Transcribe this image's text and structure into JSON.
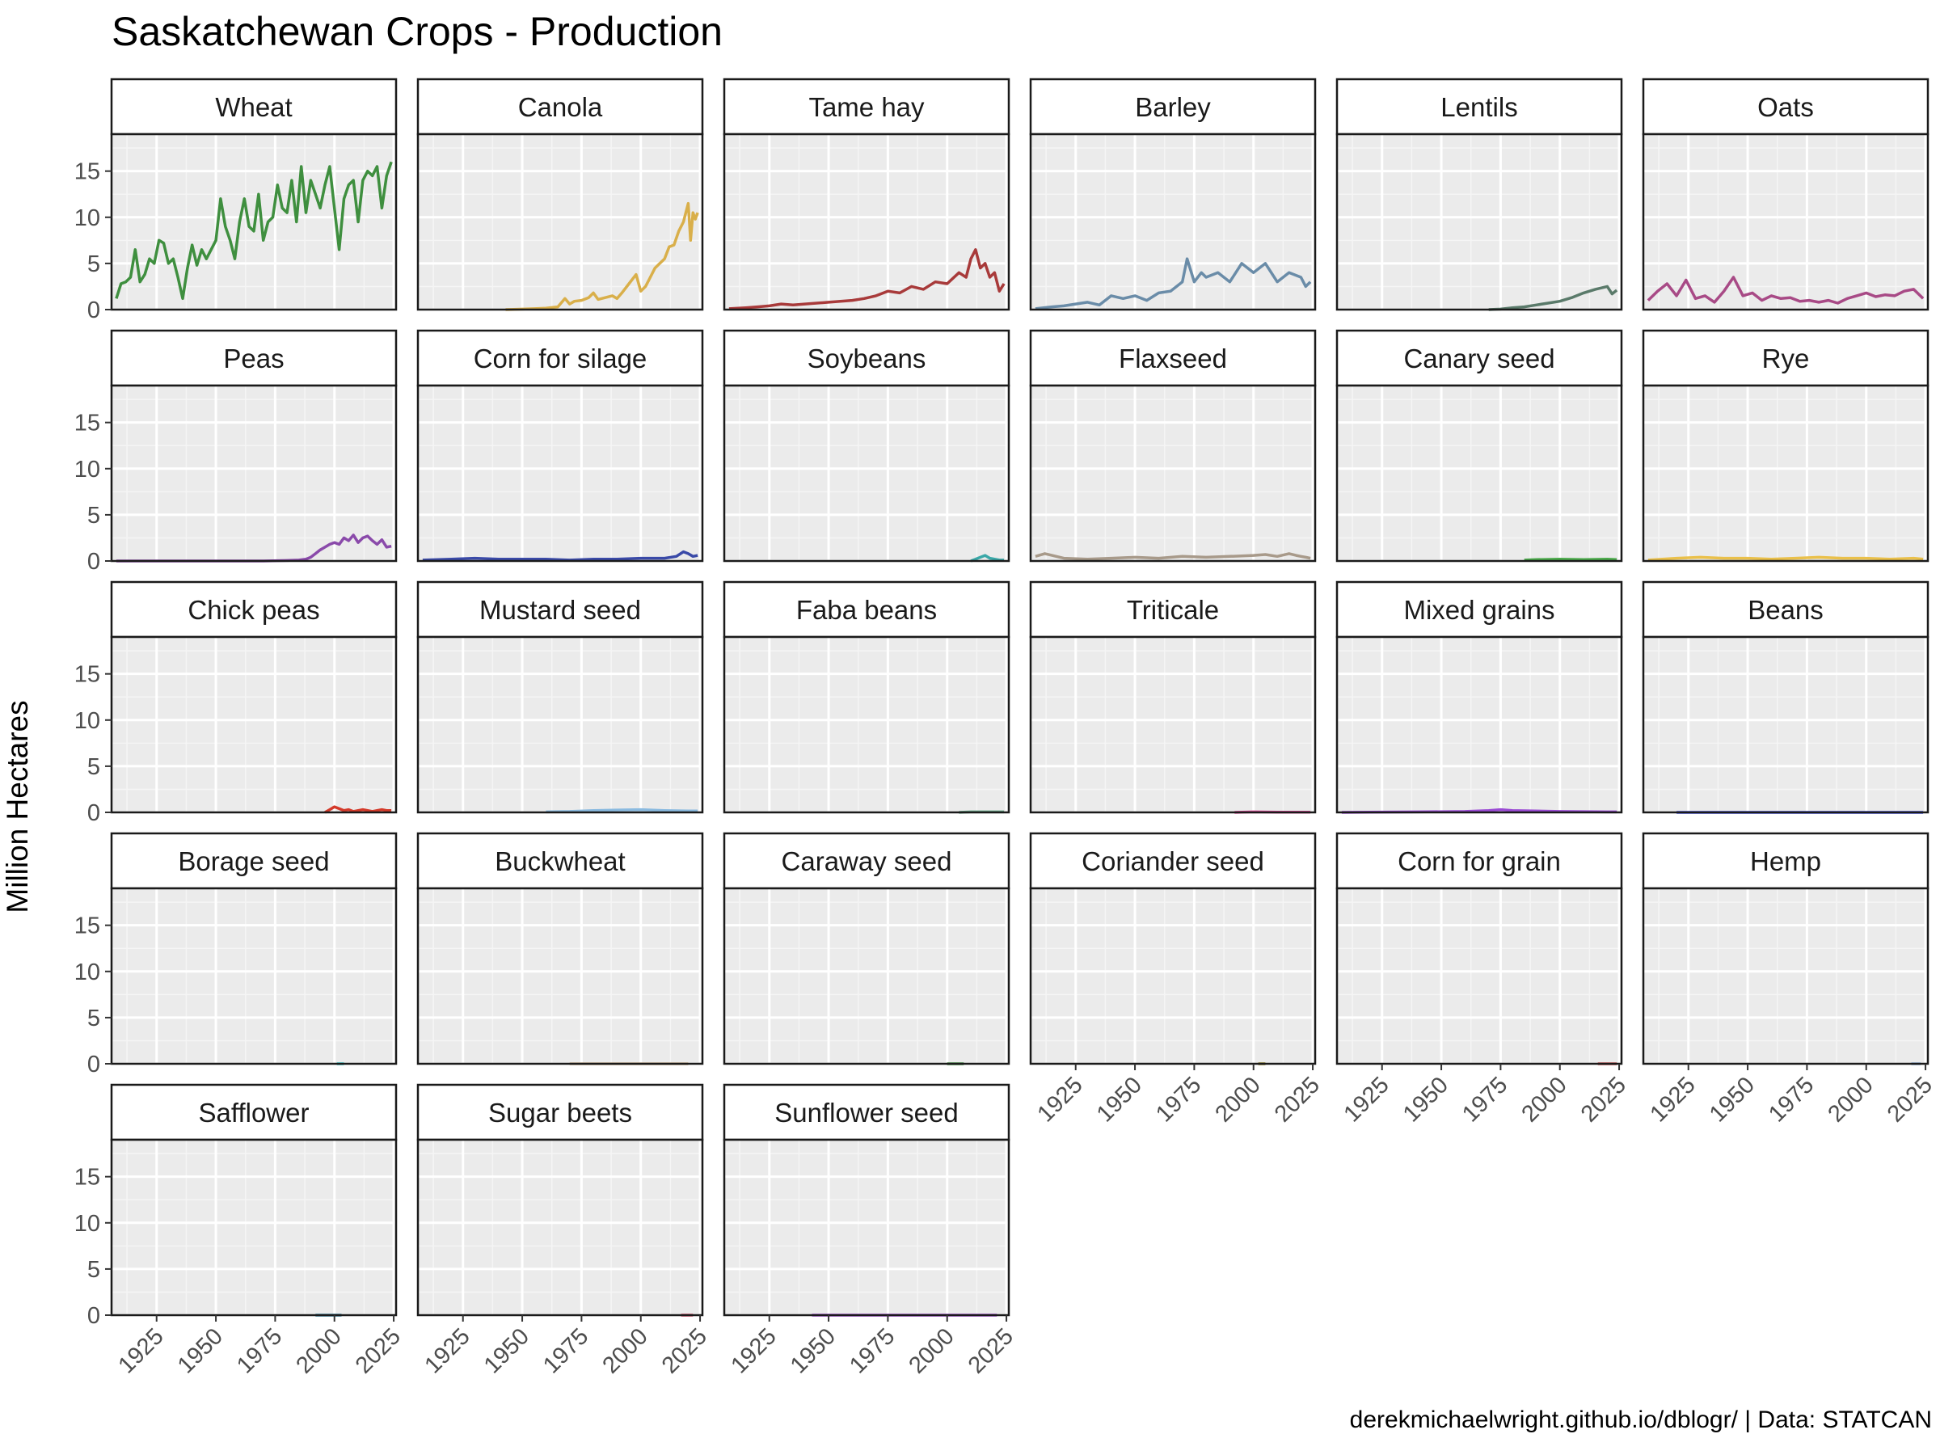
{
  "title": "Saskatchewan Crops - Production",
  "ylabel": "Million Hectares",
  "caption": "derekmichaelwright.github.io/dblogr/ | Data: STATCAN",
  "chart_data": {
    "type": "line",
    "facet": "small-multiples",
    "ylim": [
      0,
      19
    ],
    "yticks": [
      0,
      5,
      10,
      15
    ],
    "xlim": [
      1906,
      2026
    ],
    "xticks": [
      1925,
      1950,
      1975,
      2000,
      2025
    ],
    "grid": true,
    "panels": [
      {
        "name": "Wheat",
        "color": "#3F8F3F",
        "x": [
          1908,
          1910,
          1912,
          1914,
          1916,
          1918,
          1920,
          1922,
          1924,
          1926,
          1928,
          1930,
          1932,
          1934,
          1936,
          1938,
          1940,
          1942,
          1944,
          1946,
          1948,
          1950,
          1952,
          1954,
          1956,
          1958,
          1960,
          1962,
          1964,
          1966,
          1968,
          1970,
          1972,
          1974,
          1976,
          1978,
          1980,
          1982,
          1984,
          1986,
          1988,
          1990,
          1992,
          1994,
          1996,
          1998,
          2000,
          2002,
          2004,
          2006,
          2008,
          2010,
          2012,
          2014,
          2016,
          2018,
          2020,
          2022,
          2024
        ],
        "y": [
          1.2,
          2.8,
          3,
          3.5,
          6.5,
          3,
          3.8,
          5.5,
          5,
          7.5,
          7.2,
          5,
          5.5,
          3.5,
          1.2,
          4.5,
          7,
          4.8,
          6.5,
          5.5,
          6.5,
          7.5,
          12,
          9,
          7.5,
          5.5,
          9.5,
          12,
          9,
          8.5,
          12.5,
          7.5,
          9.5,
          10,
          13.5,
          11,
          10.5,
          14,
          9.5,
          15.5,
          10.5,
          14,
          12.5,
          11,
          13.5,
          15.5,
          11,
          6.5,
          12,
          13.5,
          14,
          9.5,
          14,
          15,
          14.5,
          15.5,
          11,
          14.5,
          16
        ]
      },
      {
        "name": "Canola",
        "color": "#D9AF4A",
        "x": [
          1943,
          1950,
          1955,
          1960,
          1965,
          1968,
          1970,
          1972,
          1975,
          1978,
          1980,
          1982,
          1985,
          1988,
          1990,
          1992,
          1995,
          1998,
          2000,
          2002,
          2004,
          2006,
          2008,
          2010,
          2012,
          2014,
          2016,
          2018,
          2020,
          2021,
          2022,
          2023,
          2024
        ],
        "y": [
          0,
          0.05,
          0.1,
          0.15,
          0.3,
          1.2,
          0.6,
          0.9,
          1,
          1.3,
          1.8,
          1.1,
          1.3,
          1.5,
          1.2,
          1.8,
          2.8,
          3.8,
          2,
          2.5,
          3.5,
          4.5,
          5,
          5.5,
          6.8,
          7,
          8.5,
          9.5,
          11.5,
          7.5,
          10.5,
          9.8,
          10.5
        ]
      },
      {
        "name": "Tame hay",
        "color": "#A83A3A",
        "x": [
          1908,
          1915,
          1920,
          1925,
          1930,
          1935,
          1940,
          1945,
          1950,
          1955,
          1960,
          1965,
          1970,
          1975,
          1980,
          1985,
          1990,
          1995,
          2000,
          2005,
          2008,
          2010,
          2012,
          2014,
          2016,
          2018,
          2020,
          2022,
          2024
        ],
        "y": [
          0.1,
          0.2,
          0.3,
          0.4,
          0.6,
          0.5,
          0.6,
          0.7,
          0.8,
          0.9,
          1,
          1.2,
          1.5,
          2,
          1.8,
          2.5,
          2.2,
          3,
          2.8,
          4,
          3.5,
          5.5,
          6.5,
          4.5,
          5,
          3.5,
          4,
          2,
          2.8
        ]
      },
      {
        "name": "Barley",
        "color": "#6A8CA8",
        "x": [
          1908,
          1915,
          1920,
          1925,
          1930,
          1935,
          1940,
          1945,
          1950,
          1955,
          1960,
          1965,
          1970,
          1972,
          1975,
          1978,
          1980,
          1985,
          1990,
          1995,
          2000,
          2005,
          2010,
          2015,
          2020,
          2022,
          2024
        ],
        "y": [
          0.1,
          0.3,
          0.4,
          0.6,
          0.8,
          0.5,
          1.5,
          1.2,
          1.5,
          1,
          1.8,
          2,
          3,
          5.5,
          3,
          4,
          3.5,
          4,
          3,
          5,
          4,
          5,
          3,
          4,
          3.5,
          2.5,
          3
        ]
      },
      {
        "name": "Lentils",
        "color": "#5A7A6A",
        "x": [
          1970,
          1975,
          1980,
          1985,
          1990,
          1995,
          2000,
          2005,
          2010,
          2015,
          2020,
          2022,
          2024
        ],
        "y": [
          0,
          0.05,
          0.2,
          0.3,
          0.5,
          0.7,
          0.9,
          1.3,
          1.8,
          2.2,
          2.5,
          1.7,
          2.1
        ]
      },
      {
        "name": "Oats",
        "color": "#A84A86",
        "x": [
          1908,
          1912,
          1916,
          1920,
          1924,
          1928,
          1932,
          1936,
          1940,
          1944,
          1948,
          1952,
          1956,
          1960,
          1964,
          1968,
          1972,
          1976,
          1980,
          1984,
          1988,
          1992,
          1996,
          2000,
          2004,
          2008,
          2012,
          2016,
          2020,
          2024
        ],
        "y": [
          1,
          2,
          2.8,
          1.5,
          3.2,
          1.2,
          1.5,
          0.8,
          2,
          3.5,
          1.5,
          1.8,
          1,
          1.5,
          1.2,
          1.3,
          0.9,
          1,
          0.8,
          1,
          0.7,
          1.2,
          1.5,
          1.8,
          1.4,
          1.6,
          1.5,
          2,
          2.2,
          1.2
        ]
      },
      {
        "name": "Peas",
        "color": "#8A4AAA",
        "x": [
          1908,
          1930,
          1950,
          1970,
          1980,
          1985,
          1988,
          1990,
          1992,
          1994,
          1996,
          1998,
          2000,
          2002,
          2004,
          2006,
          2008,
          2010,
          2012,
          2014,
          2016,
          2018,
          2020,
          2022,
          2024
        ],
        "y": [
          0,
          0,
          0,
          0,
          0.05,
          0.1,
          0.2,
          0.4,
          0.8,
          1.2,
          1.5,
          1.8,
          2,
          1.8,
          2.5,
          2.2,
          2.8,
          2,
          2.5,
          2.7,
          2.2,
          1.8,
          2.3,
          1.5,
          1.6
        ]
      },
      {
        "name": "Corn for silage",
        "color": "#3A4AA8",
        "x": [
          1908,
          1920,
          1930,
          1940,
          1950,
          1960,
          1970,
          1980,
          1990,
          2000,
          2010,
          2015,
          2018,
          2020,
          2022,
          2024
        ],
        "y": [
          0.1,
          0.2,
          0.3,
          0.2,
          0.2,
          0.2,
          0.1,
          0.2,
          0.2,
          0.3,
          0.3,
          0.5,
          1,
          0.8,
          0.5,
          0.6
        ]
      },
      {
        "name": "Soybeans",
        "color": "#3AA8A8",
        "x": [
          2010,
          2012,
          2014,
          2016,
          2018,
          2020,
          2022,
          2024
        ],
        "y": [
          0,
          0.2,
          0.4,
          0.6,
          0.3,
          0.2,
          0.1,
          0.1
        ]
      },
      {
        "name": "Flaxseed",
        "color": "#A89A8A",
        "x": [
          1908,
          1912,
          1920,
          1930,
          1940,
          1950,
          1960,
          1970,
          1980,
          1990,
          2000,
          2005,
          2010,
          2015,
          2018,
          2020,
          2022,
          2024
        ],
        "y": [
          0.5,
          0.8,
          0.3,
          0.2,
          0.3,
          0.4,
          0.3,
          0.5,
          0.4,
          0.5,
          0.6,
          0.7,
          0.5,
          0.8,
          0.6,
          0.5,
          0.4,
          0.3
        ]
      },
      {
        "name": "Canary seed",
        "color": "#4AAA4A",
        "x": [
          1985,
          1990,
          2000,
          2010,
          2020,
          2024
        ],
        "y": [
          0.1,
          0.15,
          0.2,
          0.15,
          0.2,
          0.15
        ]
      },
      {
        "name": "Rye",
        "color": "#EAC04A",
        "x": [
          1908,
          1920,
          1930,
          1940,
          1950,
          1960,
          1970,
          1980,
          1990,
          2000,
          2010,
          2020,
          2024
        ],
        "y": [
          0.1,
          0.3,
          0.4,
          0.3,
          0.3,
          0.2,
          0.3,
          0.4,
          0.3,
          0.3,
          0.2,
          0.3,
          0.2
        ]
      },
      {
        "name": "Chick peas",
        "color": "#D43A2A",
        "x": [
          1996,
          1998,
          2000,
          2002,
          2004,
          2006,
          2008,
          2010,
          2012,
          2014,
          2016,
          2018,
          2020,
          2022,
          2024
        ],
        "y": [
          0,
          0.3,
          0.6,
          0.4,
          0.2,
          0.3,
          0.1,
          0.2,
          0.3,
          0.2,
          0.1,
          0.2,
          0.3,
          0.2,
          0.2
        ]
      },
      {
        "name": "Mustard seed",
        "color": "#8ABAE0",
        "x": [
          1960,
          1970,
          1980,
          1990,
          2000,
          2010,
          2020,
          2024
        ],
        "y": [
          0.05,
          0.1,
          0.2,
          0.25,
          0.3,
          0.2,
          0.15,
          0.15
        ]
      },
      {
        "name": "Faba beans",
        "color": "#6AA88A",
        "x": [
          2005,
          2010,
          2015,
          2020,
          2024
        ],
        "y": [
          0,
          0.05,
          0.05,
          0.05,
          0.05
        ]
      },
      {
        "name": "Triticale",
        "color": "#E04A9A",
        "x": [
          1992,
          2000,
          2010,
          2020,
          2024
        ],
        "y": [
          0,
          0.05,
          0.02,
          0.02,
          0.02
        ]
      },
      {
        "name": "Mixed grains",
        "color": "#9A4AD4",
        "x": [
          1908,
          1920,
          1940,
          1960,
          1970,
          1975,
          1980,
          2000,
          2020,
          2024
        ],
        "y": [
          0,
          0.02,
          0.05,
          0.1,
          0.2,
          0.3,
          0.2,
          0.1,
          0.05,
          0.05
        ]
      },
      {
        "name": "Beans",
        "color": "#3A4AE0",
        "x": [
          1920,
          2024
        ],
        "y": [
          0,
          0
        ]
      },
      {
        "name": "Borage seed",
        "color": "#3AD4D4",
        "x": [
          2001,
          2004
        ],
        "y": [
          0,
          0
        ]
      },
      {
        "name": "Buckwheat",
        "color": "#D4BA9A",
        "x": [
          1970,
          2020
        ],
        "y": [
          0,
          0
        ]
      },
      {
        "name": "Caraway seed",
        "color": "#4A9A4A",
        "x": [
          2000,
          2007
        ],
        "y": [
          0,
          0
        ]
      },
      {
        "name": "Coriander seed",
        "color": "#9A8A2A",
        "x": [
          2002,
          2005
        ],
        "y": [
          0,
          0
        ]
      },
      {
        "name": "Corn for grain",
        "color": "#D45A5A",
        "x": [
          2016,
          2024
        ],
        "y": [
          0,
          0
        ]
      },
      {
        "name": "Hemp",
        "color": "#9ABAE0",
        "x": [
          2019,
          2023
        ],
        "y": [
          0,
          0
        ]
      },
      {
        "name": "Safflower",
        "color": "#3A8AAA",
        "x": [
          1992,
          2003
        ],
        "y": [
          0,
          0
        ]
      },
      {
        "name": "Sugar beets",
        "color": "#E04A6A",
        "x": [
          2017,
          2022
        ],
        "y": [
          0,
          0
        ]
      },
      {
        "name": "Sunflower seed",
        "color": "#AA4AE0",
        "x": [
          1943,
          2021
        ],
        "y": [
          0,
          0
        ]
      }
    ]
  }
}
